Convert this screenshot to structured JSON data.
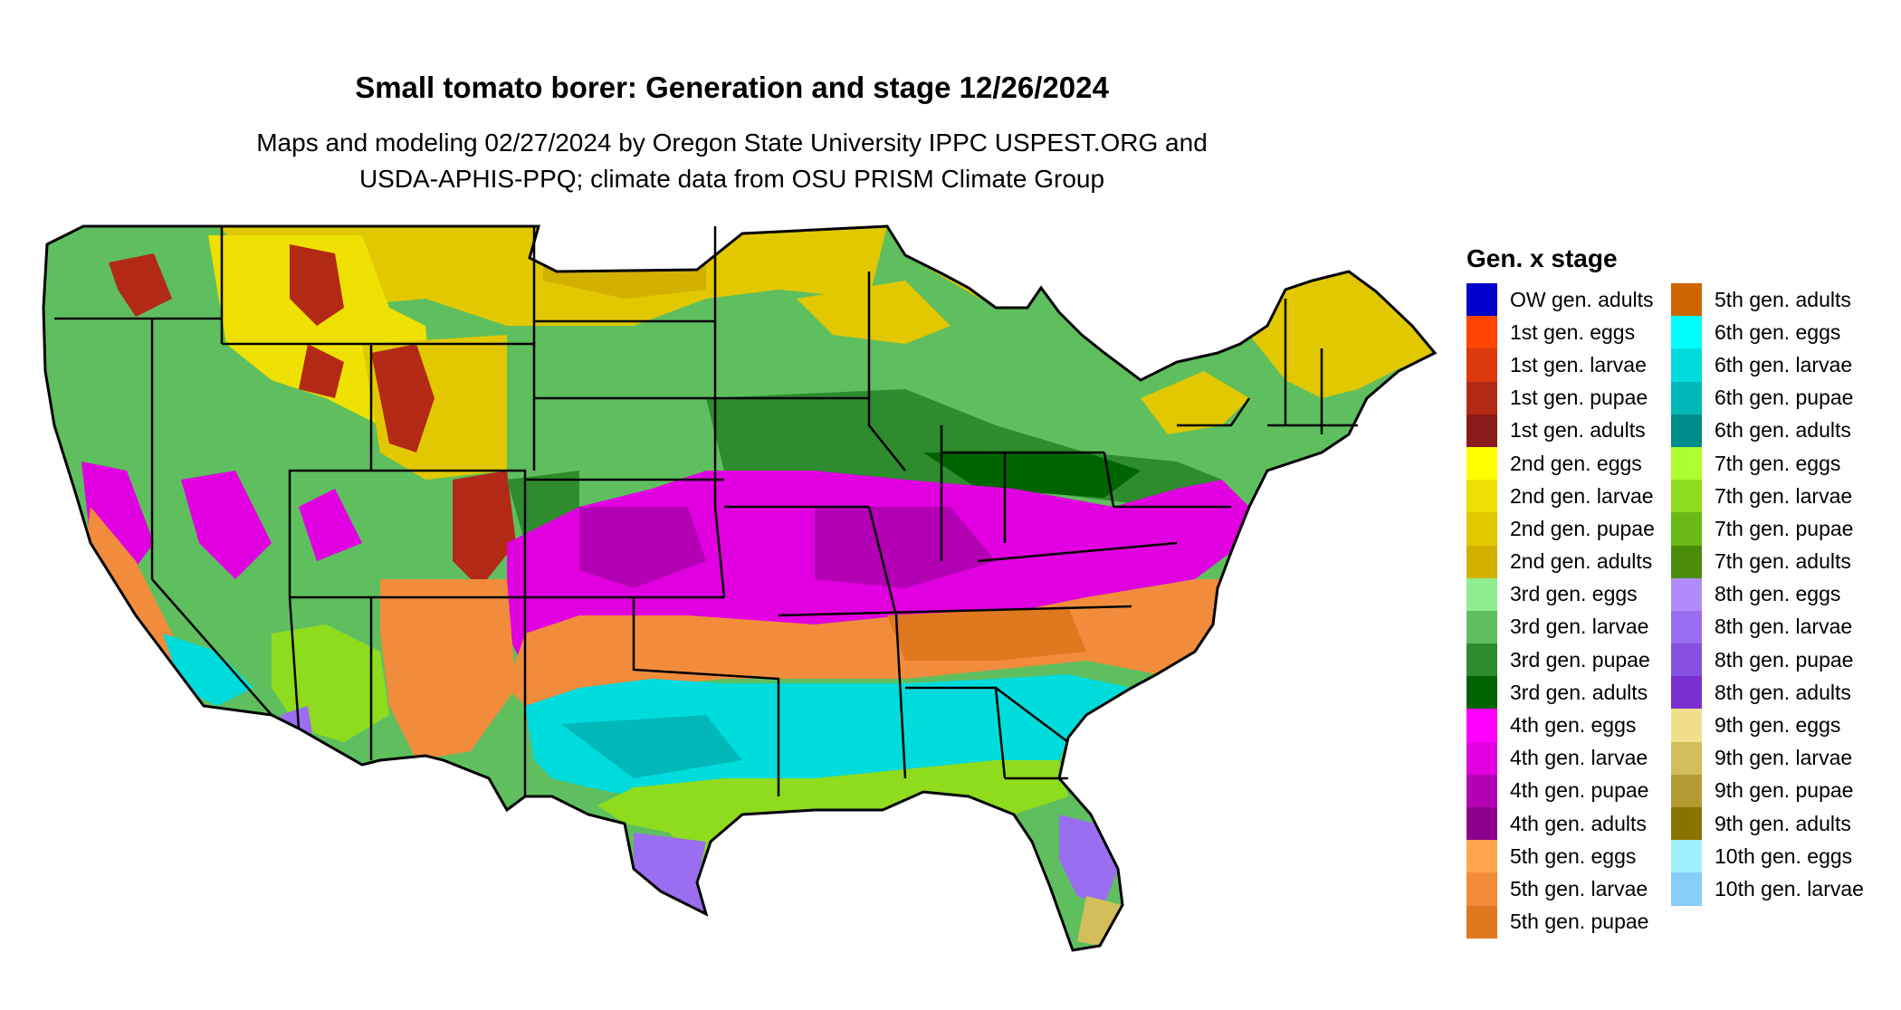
{
  "map": {
    "title": "Small tomato borer: Generation and stage 12/26/2024",
    "subtitle_lines": [
      "Maps and modeling 02/27/2024 by Oregon State University IPPC USPEST.ORG and",
      "USDA-APHIS-PPQ; climate data from OSU PRISM Climate Group"
    ],
    "region": "contiguous United States"
  },
  "legend": {
    "title": "Gen. x stage",
    "columns": [
      [
        {
          "label": "OW gen. adults",
          "color": "#0000cd"
        },
        {
          "label": "1st gen. eggs",
          "color": "#ff4500"
        },
        {
          "label": "1st gen. larvae",
          "color": "#dc3a0e"
        },
        {
          "label": "1st gen. pupae",
          "color": "#b22a16"
        },
        {
          "label": "1st gen. adults",
          "color": "#8b1a1a"
        },
        {
          "label": "2nd gen. eggs",
          "color": "#ffff00"
        },
        {
          "label": "2nd gen. larvae",
          "color": "#eee000"
        },
        {
          "label": "2nd gen. pupae",
          "color": "#e1c800"
        },
        {
          "label": "2nd gen. adults",
          "color": "#d2b000"
        },
        {
          "label": "3rd gen. eggs",
          "color": "#90ee90"
        },
        {
          "label": "3rd gen. larvae",
          "color": "#5fbf5f"
        },
        {
          "label": "3rd gen. pupae",
          "color": "#2e8b2e"
        },
        {
          "label": "3rd gen. adults",
          "color": "#006400"
        },
        {
          "label": "4th gen. eggs",
          "color": "#ff00ff"
        },
        {
          "label": "4th gen. larvae",
          "color": "#e000e0"
        },
        {
          "label": "4th gen. pupae",
          "color": "#b400b4"
        },
        {
          "label": "4th gen. adults",
          "color": "#8b008b"
        },
        {
          "label": "5th gen. eggs",
          "color": "#ffa54f"
        },
        {
          "label": "5th gen. larvae",
          "color": "#f08c3c"
        },
        {
          "label": "5th gen. pupae",
          "color": "#e07820"
        }
      ],
      [
        {
          "label": "5th gen. adults",
          "color": "#cd6600"
        },
        {
          "label": "6th gen. eggs",
          "color": "#00ffff"
        },
        {
          "label": "6th gen. larvae",
          "color": "#00dcdc"
        },
        {
          "label": "6th gen. pupae",
          "color": "#00b8b8"
        },
        {
          "label": "6th gen. adults",
          "color": "#008b8b"
        },
        {
          "label": "7th gen. eggs",
          "color": "#adff2f"
        },
        {
          "label": "7th gen. larvae",
          "color": "#8fdc1e"
        },
        {
          "label": "7th gen. pupae",
          "color": "#6ab814"
        },
        {
          "label": "7th gen. adults",
          "color": "#4a8b0a"
        },
        {
          "label": "8th gen. eggs",
          "color": "#b28cff"
        },
        {
          "label": "8th gen. larvae",
          "color": "#9a6ef0"
        },
        {
          "label": "8th gen. pupae",
          "color": "#8650e0"
        },
        {
          "label": "8th gen. adults",
          "color": "#7a30d0"
        },
        {
          "label": "9th gen. eggs",
          "color": "#f0e08c"
        },
        {
          "label": "9th gen. larvae",
          "color": "#d2be5a"
        },
        {
          "label": "9th gen. pupae",
          "color": "#b49a32"
        },
        {
          "label": "9th gen. adults",
          "color": "#8b7300"
        },
        {
          "label": "10th gen. eggs",
          "color": "#a0f0ff"
        },
        {
          "label": "10th gen. larvae",
          "color": "#87cefa"
        }
      ]
    ]
  }
}
